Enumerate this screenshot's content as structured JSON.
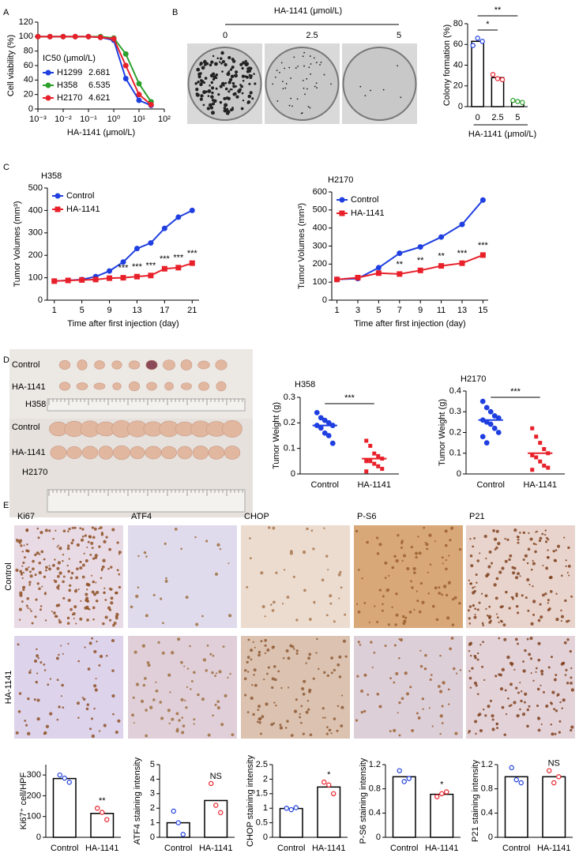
{
  "panels": [
    "A",
    "B",
    "C",
    "D",
    "E"
  ],
  "colony": {
    "title": "HA-1141 (μmol/L)",
    "doses": [
      "0",
      "2.5",
      "5"
    ]
  },
  "photos": {
    "rows": [
      "Control",
      "HA-1141",
      "H358",
      "Control",
      "HA-1141",
      "H2170"
    ]
  },
  "ihc": {
    "markers": [
      "Ki67",
      "ATF4",
      "CHOP",
      "P-S6",
      "P21"
    ],
    "rows": [
      "Control",
      "HA-1141"
    ]
  },
  "chart_data": [
    {
      "type": "line",
      "xlog": true,
      "ylabel": "Cell viability (%)",
      "xlabel": "HA-1141 (μmol/L)",
      "legend_title": "IC50 (μmol/L)",
      "legend": "lower-left",
      "x": [
        0.001,
        0.003,
        0.01,
        0.03,
        0.1,
        0.3,
        1,
        3,
        10,
        30
      ],
      "xlim": [
        0.001,
        100
      ],
      "xticks": [
        {
          "value": 0.001,
          "label": "10⁻³"
        },
        {
          "value": 0.01,
          "label": "10⁻²"
        },
        {
          "value": 0.1,
          "label": "10⁻¹"
        },
        {
          "value": 1,
          "label": "10⁰"
        },
        {
          "value": 10,
          "label": "10¹"
        },
        {
          "value": 100,
          "label": "10²"
        }
      ],
      "ylim": [
        0,
        120
      ],
      "yticks": [
        0,
        20,
        40,
        60,
        80,
        100,
        120
      ],
      "series": [
        {
          "name": "H1299",
          "ic50": 2.681,
          "color": "#1f3fe0",
          "marker": "circle",
          "values": [
            100,
            100,
            100,
            100,
            100,
            99,
            95,
            42,
            12,
            5
          ]
        },
        {
          "name": "H358",
          "ic50": 6.535,
          "color": "#2ca02c",
          "marker": "circle",
          "values": [
            100,
            100,
            100,
            100,
            100,
            100,
            98,
            76,
            35,
            10
          ]
        },
        {
          "name": "H2170",
          "ic50": 4.621,
          "color": "#e8202a",
          "marker": "circle",
          "values": [
            100,
            100,
            100,
            100,
            100,
            99,
            97,
            60,
            20,
            6
          ]
        }
      ]
    },
    {
      "type": "bar",
      "ylabel": "Colony formation (%)",
      "xlabel": "HA-1141 (μmol/L)",
      "categories": [
        "0",
        "2.5",
        "5"
      ],
      "values": [
        63,
        28,
        5
      ],
      "points": [
        [
          59,
          66,
          63
        ],
        [
          31,
          27,
          26
        ],
        [
          6,
          5,
          4
        ]
      ],
      "point_colors": [
        "#1f3fe0",
        "#e8202a",
        "#2ca02c"
      ],
      "ylim": [
        0,
        80
      ],
      "yticks": [
        0,
        20,
        40,
        60,
        80
      ],
      "annotations": [
        {
          "from": "0",
          "to": "2.5",
          "text": "*"
        },
        {
          "from": "0",
          "to": "5",
          "text": "**"
        }
      ]
    },
    {
      "type": "line",
      "title": "H358",
      "ylabel": "Tumor Volumes (mm³)",
      "xlabel": "Time after first injection (day)",
      "legend": "upper-left",
      "x": [
        1,
        3,
        5,
        7,
        9,
        11,
        13,
        15,
        17,
        19,
        21
      ],
      "xlim": [
        0,
        22
      ],
      "xticks": [
        1,
        5,
        9,
        13,
        17,
        21
      ],
      "ylim": [
        0,
        500
      ],
      "yticks": [
        0,
        100,
        200,
        300,
        400,
        500
      ],
      "series": [
        {
          "name": "Control",
          "color": "#1f3fe0",
          "marker": "circle",
          "values": [
            85,
            88,
            92,
            105,
            130,
            170,
            230,
            255,
            320,
            370,
            400
          ]
        },
        {
          "name": "HA-1141",
          "color": "#e8202a",
          "marker": "square",
          "values": [
            85,
            88,
            90,
            92,
            98,
            100,
            105,
            110,
            140,
            145,
            165
          ]
        }
      ],
      "annotations": [
        {
          "x": 11,
          "text": "***"
        },
        {
          "x": 13,
          "text": "***"
        },
        {
          "x": 15,
          "text": "***"
        },
        {
          "x": 17,
          "text": "***"
        },
        {
          "x": 19,
          "text": "***"
        },
        {
          "x": 21,
          "text": "***"
        }
      ]
    },
    {
      "type": "line",
      "title": "H2170",
      "ylabel": "Tumor Volumes (mm³)",
      "xlabel": "Time after first injection (day)",
      "legend": "upper-left",
      "x": [
        1,
        3,
        5,
        7,
        9,
        11,
        13,
        15
      ],
      "xlim": [
        0.5,
        15.5
      ],
      "xticks": [
        1,
        3,
        5,
        7,
        9,
        11,
        13,
        15
      ],
      "ylim": [
        0,
        600
      ],
      "yticks": [
        0,
        100,
        200,
        300,
        400,
        500,
        600
      ],
      "series": [
        {
          "name": "Control",
          "color": "#1f3fe0",
          "marker": "circle",
          "values": [
            115,
            120,
            180,
            260,
            295,
            350,
            420,
            555
          ]
        },
        {
          "name": "HA-1141",
          "color": "#e8202a",
          "marker": "square",
          "values": [
            115,
            125,
            150,
            145,
            165,
            190,
            205,
            250
          ]
        }
      ],
      "annotations": [
        {
          "x": 7,
          "text": "**"
        },
        {
          "x": 9,
          "text": "**"
        },
        {
          "x": 11,
          "text": "**"
        },
        {
          "x": 13,
          "text": "***"
        },
        {
          "x": 15,
          "text": "***"
        }
      ]
    },
    {
      "type": "dot",
      "title": "H358",
      "ylabel": "Tumor Weight (g)",
      "categories": [
        "Control",
        "HA-1141"
      ],
      "values": [
        0.19,
        0.06
      ],
      "points": [
        [
          0.24,
          0.22,
          0.21,
          0.2,
          0.19,
          0.19,
          0.18,
          0.16,
          0.15,
          0.12
        ],
        [
          0.13,
          0.11,
          0.08,
          0.07,
          0.06,
          0.05,
          0.05,
          0.04,
          0.03,
          0.02,
          0.01
        ]
      ],
      "point_colors": [
        "#1f3fe0",
        "#e8202a"
      ],
      "ylim": [
        0,
        0.3
      ],
      "yticks": [
        0,
        0.1,
        0.2,
        0.3
      ],
      "annotations": [
        {
          "from": "Control",
          "to": "HA-1141",
          "text": "***"
        }
      ]
    },
    {
      "type": "dot",
      "title": "H2170",
      "ylabel": "Tumor Weight (g)",
      "categories": [
        "Control",
        "HA-1141"
      ],
      "values": [
        0.26,
        0.1
      ],
      "points": [
        [
          0.35,
          0.32,
          0.3,
          0.28,
          0.27,
          0.26,
          0.25,
          0.24,
          0.22,
          0.2,
          0.18,
          0.15
        ],
        [
          0.22,
          0.18,
          0.15,
          0.12,
          0.1,
          0.09,
          0.08,
          0.06,
          0.04,
          0.03,
          0.02
        ]
      ],
      "point_colors": [
        "#1f3fe0",
        "#e8202a"
      ],
      "ylim": [
        0,
        0.4
      ],
      "yticks": [
        0,
        0.1,
        0.2,
        0.3,
        0.4
      ],
      "annotations": [
        {
          "from": "Control",
          "to": "HA-1141",
          "text": "***"
        }
      ]
    },
    {
      "type": "bar",
      "ylabel": "Ki67⁺ cell/HPF",
      "categories": [
        "Control",
        "HA-1141"
      ],
      "values": [
        283,
        115
      ],
      "points": [
        [
          300,
          285,
          265
        ],
        [
          140,
          120,
          85
        ]
      ],
      "point_colors": [
        "#1f3fe0",
        "#e8202a"
      ],
      "ylim": [
        0,
        350
      ],
      "yticks": [
        0,
        100,
        200,
        300
      ],
      "annotations": [
        {
          "category": "HA-1141",
          "text": "**"
        }
      ]
    },
    {
      "type": "bar",
      "ylabel": "ATF4 staining intensity",
      "categories": [
        "Control",
        "HA-1141"
      ],
      "values": [
        1.0,
        2.53
      ],
      "points": [
        [
          1.8,
          1.0,
          0.2
        ],
        [
          3.7,
          2.2,
          1.7
        ]
      ],
      "point_colors": [
        "#1f3fe0",
        "#e8202a"
      ],
      "ylim": [
        0,
        5
      ],
      "yticks": [
        0,
        1,
        2,
        3,
        4,
        5
      ],
      "annotations": [
        {
          "category": "HA-1141",
          "text": "NS"
        }
      ]
    },
    {
      "type": "bar",
      "ylabel": "CHOP staining intensity",
      "categories": [
        "Control",
        "HA-1141"
      ],
      "values": [
        0.99,
        1.73
      ],
      "points": [
        [
          1.0,
          0.95,
          1.02
        ],
        [
          1.9,
          1.8,
          1.5
        ]
      ],
      "point_colors": [
        "#1f3fe0",
        "#e8202a"
      ],
      "ylim": [
        0,
        2.5
      ],
      "yticks": [
        0,
        0.5,
        1,
        1.5,
        2,
        2.5
      ],
      "annotations": [
        {
          "category": "HA-1141",
          "text": "*"
        }
      ]
    },
    {
      "type": "bar",
      "ylabel": "P-S6 staining intensity",
      "categories": [
        "Control",
        "HA-1141"
      ],
      "values": [
        1.0,
        0.71
      ],
      "points": [
        [
          1.1,
          0.92,
          0.97
        ],
        [
          0.67,
          0.72,
          0.75
        ]
      ],
      "point_colors": [
        "#1f3fe0",
        "#e8202a"
      ],
      "ylim": [
        0,
        1.2
      ],
      "yticks": [
        0,
        0.4,
        0.8,
        1.2
      ],
      "annotations": [
        {
          "category": "HA-1141",
          "text": "*"
        }
      ]
    },
    {
      "type": "bar",
      "ylabel": "P21 staining intensity",
      "categories": [
        "Control",
        "HA-1141"
      ],
      "values": [
        1.0,
        1.0
      ],
      "points": [
        [
          1.15,
          0.95,
          0.9
        ],
        [
          1.1,
          0.9,
          1.0
        ]
      ],
      "point_colors": [
        "#1f3fe0",
        "#e8202a"
      ],
      "ylim": [
        0,
        1.2
      ],
      "yticks": [
        0,
        0.4,
        0.8,
        1.2
      ],
      "annotations": [
        {
          "category": "HA-1141",
          "text": "NS"
        }
      ]
    }
  ]
}
